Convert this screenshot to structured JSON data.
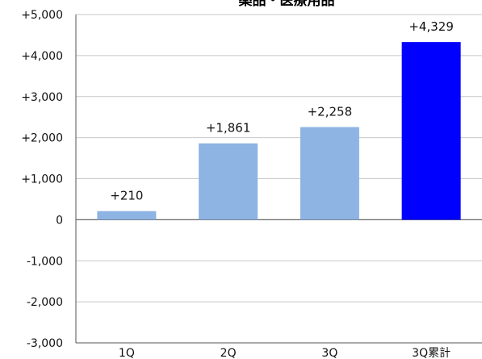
{
  "chart_data": {
    "type": "bar",
    "title": "薬品・医療用品",
    "categories": [
      "1Q",
      "2Q",
      "3Q",
      "3Q累計"
    ],
    "values": [
      210,
      1861,
      2258,
      4329
    ],
    "data_labels": [
      "+210",
      "+1,861",
      "+2,258",
      "+4,329"
    ],
    "bar_colors": [
      "#8db4e2",
      "#8db4e2",
      "#8db4e2",
      "#0000ff"
    ],
    "ylim": [
      -3000,
      5000
    ],
    "yticks": [
      5000,
      4000,
      3000,
      2000,
      1000,
      0,
      -1000,
      -2000,
      -3000
    ],
    "ytick_labels": [
      "+5,000",
      "+4,000",
      "+3,000",
      "+2,000",
      "+1,000",
      "0",
      "-1,000",
      "-2,000",
      "-3,000"
    ],
    "grid": true,
    "legend": "none"
  }
}
